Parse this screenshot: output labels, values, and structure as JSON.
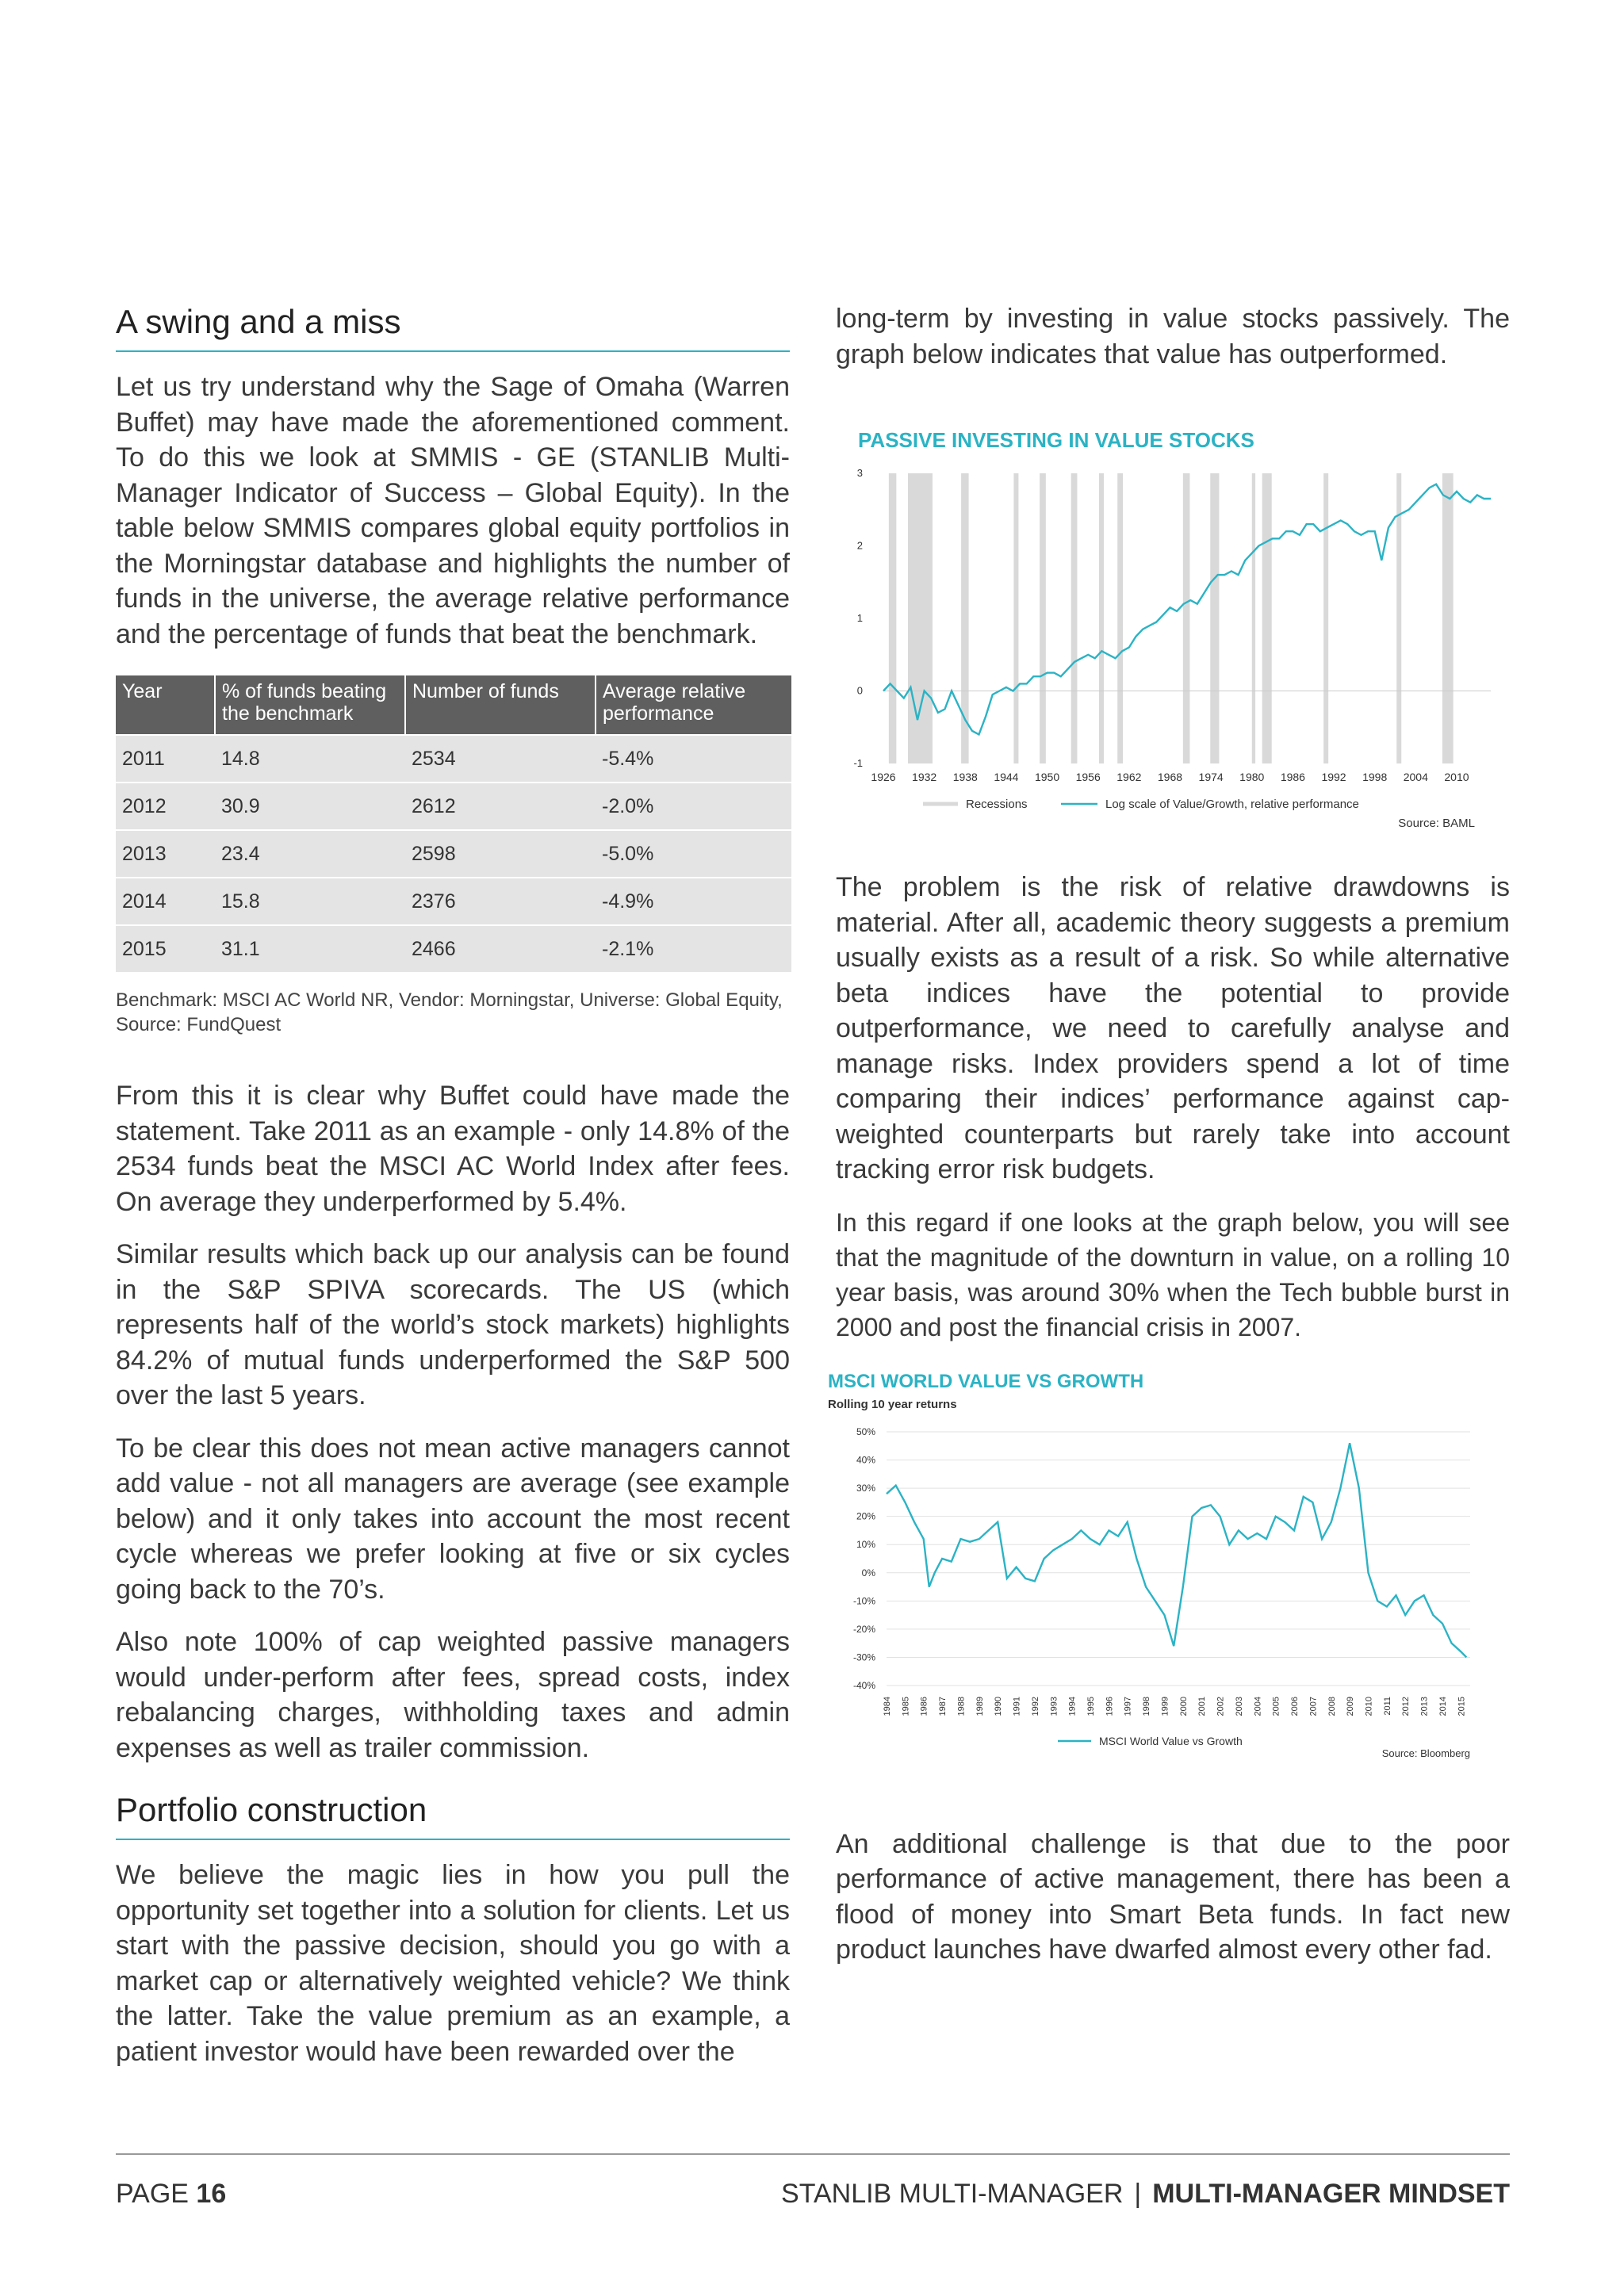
{
  "left": {
    "heading1": "A swing and a miss",
    "para1": "Let us try understand why the Sage of Omaha (Warren Buffet) may have made the aforementioned comment. To do this we look at SMMIS - GE (STANLIB Multi-Manager Indicator of Success – Global Equity). In the table below SMMIS compares global equity portfolios in the Morningstar database and highlights the number of funds in the universe, the average relative performance and the percentage of funds that beat the benchmark.",
    "table": {
      "headers": [
        "Year",
        "% of funds beating the benchmark",
        "Number of funds",
        "Average relative performance"
      ],
      "rows": [
        [
          "2011",
          "14.8",
          "2534",
          "-5.4%"
        ],
        [
          "2012",
          "30.9",
          "2612",
          "-2.0%"
        ],
        [
          "2013",
          "23.4",
          "2598",
          "-5.0%"
        ],
        [
          "2014",
          "15.8",
          "2376",
          "-4.9%"
        ],
        [
          "2015",
          "31.1",
          "2466",
          "-2.1%"
        ]
      ]
    },
    "caption": "Benchmark: MSCI AC World NR, Vendor: Morningstar, Universe: Global Equity, Source: FundQuest",
    "para2": "From this it is clear why Buffet could have made the statement. Take 2011 as an example - only 14.8% of the 2534 funds beat the MSCI AC World Index after fees. On average they underperformed by 5.4%.",
    "para3": "Similar results which back up our analysis can be found in the S&P SPIVA scorecards. The US (which represents half of the world’s stock markets) highlights 84.2% of mutual funds underperformed the S&P 500 over the last 5 years.",
    "para4": "To be clear this does not mean active managers cannot add value - not all managers are average (see example below) and it only takes into account the most recent cycle whereas we prefer looking at five or six cycles going back to the 70’s.",
    "para5": "Also note 100% of cap weighted passive managers would under-perform after fees, spread costs, index rebalancing charges, withholding taxes and admin expenses as well as trailer commission.",
    "heading2": "Portfolio construction",
    "para6": "We believe the magic lies in how you pull the opportunity set together into a solution for clients. Let us start with the passive decision, should you go with a market cap or alternatively weighted vehicle? We think the latter. Take the value premium as an example, a patient investor would have been rewarded over the"
  },
  "right": {
    "para1": "long-term by investing in value stocks passively. The graph below indicates that value has outperformed.",
    "para2": "The problem is the risk of relative drawdowns is material. After all, academic theory suggests a premium usually exists as a result of a risk. So while alternative beta indices have the potential to provide outperformance, we need to carefully analyse and manage risks. Index providers spend a lot of time comparing their indices’ performance against cap-weighted counterparts but rarely take into account tracking error risk budgets.",
    "para3": "In this regard if one looks at the graph below, you will see that the magnitude of the downturn in value, on a rolling 10 year basis, was around 30% when the Tech bubble burst in 2000 and post the financial crisis in 2007.",
    "para4": "An additional challenge is that due to the poor performance of active management, there has been a flood of money into Smart Beta funds. In fact new product launches have dwarfed almost every other fad."
  },
  "footer": {
    "page_label": "PAGE",
    "page_number": "16",
    "publisher": "STANLIB MULTI-MANAGER",
    "separator": "|",
    "publication": "MULTI-MANAGER MINDSET"
  },
  "colors": {
    "accent": "#2bb3c4",
    "table_header": "#5f5f5f",
    "table_row": "#e4e4e4",
    "recession": "#d9d9d9"
  },
  "chart_data": [
    {
      "type": "line",
      "title": "PASSIVE INVESTING IN VALUE STOCKS",
      "y_ticks": [
        "3",
        "2",
        "1",
        "0",
        "-1"
      ],
      "ylim": [
        -1,
        3
      ],
      "x_ticks": [
        "1926",
        "1932",
        "1938",
        "1944",
        "1950",
        "1956",
        "1962",
        "1968",
        "1974",
        "1980",
        "1986",
        "1992",
        "1998",
        "2004",
        "2010"
      ],
      "xlim": [
        1926,
        2015
      ],
      "recessions": [
        [
          1926.8,
          1927.9
        ],
        [
          1929.6,
          1933.2
        ],
        [
          1937.4,
          1938.5
        ],
        [
          1945.1,
          1945.8
        ],
        [
          1948.9,
          1949.8
        ],
        [
          1953.5,
          1954.4
        ],
        [
          1957.6,
          1958.3
        ],
        [
          1960.3,
          1961.1
        ],
        [
          1969.9,
          1970.9
        ],
        [
          1973.9,
          1975.2
        ],
        [
          1980.0,
          1980.5
        ],
        [
          1981.5,
          1982.9
        ],
        [
          1990.5,
          1991.2
        ],
        [
          2001.2,
          2001.9
        ],
        [
          2007.9,
          2009.5
        ]
      ],
      "series": [
        {
          "name": "Log scale of Value/Growth, relative performance",
          "x": [
            1926,
            1927,
            1928,
            1929,
            1930,
            1931,
            1932,
            1933,
            1934,
            1935,
            1936,
            1937,
            1938,
            1939,
            1940,
            1941,
            1942,
            1943,
            1944,
            1945,
            1946,
            1947,
            1948,
            1949,
            1950,
            1951,
            1952,
            1953,
            1954,
            1955,
            1956,
            1957,
            1958,
            1959,
            1960,
            1961,
            1962,
            1963,
            1964,
            1965,
            1966,
            1967,
            1968,
            1969,
            1970,
            1971,
            1972,
            1973,
            1974,
            1975,
            1976,
            1977,
            1978,
            1979,
            1980,
            1981,
            1982,
            1983,
            1984,
            1985,
            1986,
            1987,
            1988,
            1989,
            1990,
            1991,
            1992,
            1993,
            1994,
            1995,
            1996,
            1997,
            1998,
            1999,
            2000,
            2001,
            2002,
            2003,
            2004,
            2005,
            2006,
            2007,
            2008,
            2009,
            2010,
            2011,
            2012,
            2013,
            2014,
            2015
          ],
          "values": [
            0.0,
            0.1,
            0.0,
            -0.1,
            0.05,
            -0.4,
            0.0,
            -0.1,
            -0.3,
            -0.25,
            0.0,
            -0.2,
            -0.4,
            -0.55,
            -0.6,
            -0.35,
            -0.05,
            0.0,
            0.05,
            0.0,
            0.1,
            0.1,
            0.2,
            0.2,
            0.25,
            0.25,
            0.2,
            0.3,
            0.4,
            0.45,
            0.5,
            0.45,
            0.55,
            0.5,
            0.45,
            0.55,
            0.6,
            0.75,
            0.85,
            0.9,
            0.95,
            1.05,
            1.15,
            1.1,
            1.2,
            1.25,
            1.2,
            1.35,
            1.5,
            1.6,
            1.6,
            1.65,
            1.6,
            1.8,
            1.9,
            2.0,
            2.05,
            2.1,
            2.1,
            2.2,
            2.2,
            2.15,
            2.3,
            2.3,
            2.2,
            2.25,
            2.3,
            2.35,
            2.3,
            2.2,
            2.15,
            2.2,
            2.2,
            1.8,
            2.25,
            2.4,
            2.45,
            2.5,
            2.6,
            2.7,
            2.8,
            2.85,
            2.7,
            2.65,
            2.75,
            2.65,
            2.6,
            2.7,
            2.65,
            2.65
          ]
        }
      ],
      "legend": [
        "Recessions",
        "Log scale of Value/Growth, relative performance"
      ],
      "source": "Source: BAML"
    },
    {
      "type": "line",
      "title": "MSCI WORLD VALUE VS GROWTH",
      "subtitle": "Rolling 10 year returns",
      "y_ticks": [
        "50%",
        "40%",
        "30%",
        "20%",
        "10%",
        "0%",
        "-10%",
        "-20%",
        "-30%",
        "-40%"
      ],
      "ylim": [
        -40,
        50
      ],
      "x_ticks": [
        "1984",
        "1985",
        "1986",
        "1987",
        "1988",
        "1989",
        "1990",
        "1991",
        "1992",
        "1993",
        "1994",
        "1995",
        "1996",
        "1997",
        "1998",
        "1999",
        "2000",
        "2001",
        "2002",
        "2003",
        "2004",
        "2005",
        "2006",
        "2007",
        "2008",
        "2009",
        "2010",
        "2011",
        "2012",
        "2013",
        "2014",
        "2015"
      ],
      "xlim": [
        1984,
        2015.5
      ],
      "series": [
        {
          "name": "MSCI World Value vs Growth",
          "x": [
            1984,
            1984.5,
            1985,
            1985.5,
            1986,
            1986.3,
            1986.6,
            1987,
            1987.5,
            1988,
            1988.5,
            1989,
            1989.5,
            1990,
            1990.5,
            1991,
            1991.5,
            1992,
            1992.5,
            1993,
            1993.5,
            1994,
            1994.5,
            1995,
            1995.5,
            1996,
            1996.5,
            1997,
            1997.5,
            1998,
            1998.5,
            1999,
            1999.5,
            2000,
            2000.5,
            2001,
            2001.5,
            2002,
            2002.5,
            2003,
            2003.5,
            2004,
            2004.5,
            2005,
            2005.5,
            2006,
            2006.5,
            2007,
            2007.5,
            2008,
            2008.5,
            2009,
            2009.5,
            2010,
            2010.5,
            2011,
            2011.5,
            2012,
            2012.5,
            2013,
            2013.5,
            2014,
            2014.5,
            2015,
            2015.3
          ],
          "values": [
            28,
            31,
            25,
            18,
            12,
            -5,
            0,
            5,
            4,
            12,
            11,
            12,
            15,
            18,
            -2,
            2,
            -2,
            -3,
            5,
            8,
            10,
            12,
            15,
            12,
            10,
            15,
            13,
            18,
            5,
            -5,
            -10,
            -15,
            -26,
            -5,
            20,
            23,
            24,
            20,
            10,
            15,
            12,
            14,
            12,
            20,
            18,
            15,
            27,
            25,
            12,
            18,
            30,
            46,
            30,
            0,
            -10,
            -12,
            -8,
            -15,
            -10,
            -8,
            -15,
            -18,
            -25,
            -28,
            -30
          ]
        }
      ],
      "legend": [
        "MSCI World Value vs Growth"
      ],
      "source": "Source: Bloomberg"
    }
  ]
}
